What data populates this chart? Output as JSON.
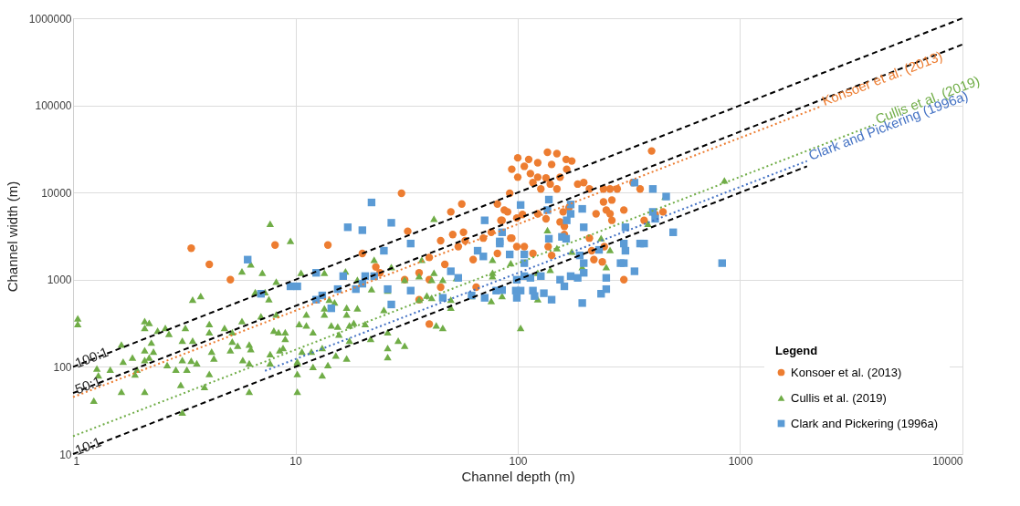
{
  "chart_data": {
    "type": "scatter",
    "xlabel": "Channel depth (m)",
    "ylabel": "Channel width (m)",
    "legend_title": "Legend",
    "legend": "bottom right",
    "grid": true,
    "log": "xy",
    "xlim": [
      1,
      10000
    ],
    "ylim": [
      10,
      1000000
    ],
    "xticks": [
      1,
      10,
      100,
      1000,
      10000
    ],
    "yticks": [
      10,
      100,
      1000,
      10000,
      100000,
      1000000
    ],
    "series": [
      {
        "name": "Konsoer et al. (2013)",
        "color": "#ed7d31",
        "marker": "circle",
        "x": [
          3.4,
          4.1,
          5.1,
          8.1,
          14,
          30,
          20,
          23,
          24,
          32,
          40,
          40,
          31,
          36,
          36,
          40,
          45,
          50,
          56,
          45,
          47,
          51,
          57,
          58,
          54,
          63,
          70,
          81,
          87,
          92,
          93,
          99,
          65,
          85,
          136,
          150,
          100,
          112,
          165,
          175,
          123,
          142,
          94,
          107,
          114,
          100,
          123,
          134,
          155,
          166,
          117,
          140,
          127,
          150,
          186,
          198,
          210,
          243,
          260,
          280,
          330,
          355,
          400,
          90,
          99,
          105,
          123,
          134,
          160,
          170,
          243,
          265,
          250,
          260,
          300,
          265,
          225,
          155,
          162,
          84,
          76,
          94,
          107,
          117,
          137,
          142,
          81,
          162,
          210,
          215,
          245,
          220,
          240,
          300,
          370,
          415,
          450
        ],
        "values": [
          2300,
          1500,
          1000,
          2500,
          2500,
          9800,
          2000,
          1400,
          1200,
          3600,
          1800,
          310,
          1000,
          1200,
          590,
          1000,
          820,
          6000,
          7400,
          2800,
          1500,
          3300,
          3500,
          2800,
          2400,
          1700,
          3000,
          7400,
          6300,
          9800,
          3000,
          2400,
          820,
          4800,
          29000,
          28000,
          25000,
          24000,
          24000,
          23000,
          22000,
          21000,
          18500,
          20000,
          16500,
          15000,
          15000,
          14700,
          15000,
          18500,
          13000,
          12500,
          11000,
          11000,
          12500,
          13000,
          11000,
          11000,
          11000,
          11000,
          13000,
          11000,
          30000,
          6000,
          5100,
          5600,
          5700,
          5000,
          6000,
          6700,
          7800,
          8200,
          6300,
          5700,
          6300,
          4800,
          5700,
          4600,
          4100,
          4800,
          3500,
          3000,
          2400,
          2000,
          2400,
          1900,
          2000,
          3300,
          3000,
          2150,
          2400,
          1700,
          1600,
          1000,
          4800,
          5600,
          6000
        ]
      },
      {
        "name": "Cullis et al. (2019)",
        "color": "#70ad47",
        "marker": "triangle",
        "x": [
          1.05,
          1.05,
          1.28,
          1.3,
          1.24,
          1.47,
          1.65,
          1.68,
          1.65,
          1.85,
          1.94,
          1.9,
          2.1,
          2.1,
          2.2,
          2.1,
          2.1,
          2.1,
          2.25,
          2.4,
          2.3,
          2.2,
          2.6,
          2.7,
          2.65,
          2.9,
          3.05,
          3.1,
          3.2,
          3.1,
          3.1,
          3.25,
          3.4,
          3.45,
          3.6,
          3.45,
          3.75,
          3.9,
          4.1,
          4.1,
          4.2,
          4.3,
          4.1,
          4.8,
          5.2,
          5.2,
          5.1,
          5.5,
          5.75,
          5.8,
          6.2,
          6.3,
          6.2,
          6.2,
          5.75,
          6.3,
          7.1,
          8.2,
          9.5,
          6.6,
          7.3,
          7.6,
          7,
          8.2,
          8,
          8.4,
          9,
          9,
          8.8,
          8.5,
          7.7,
          7.7,
          10.4,
          10.2,
          10.2,
          10.6,
          7.7,
          13.5,
          16.8,
          19,
          22.6,
          27,
          42,
          37,
          42,
          36,
          31,
          22,
          26,
          14.2,
          13.5,
          15,
          17,
          19,
          17,
          14.5,
          12,
          11.2,
          11.2,
          13.5,
          15.5,
          17.5,
          18.3,
          20.6,
          25,
          15.7,
          17.5,
          21.8,
          26,
          29,
          31,
          26,
          26,
          17,
          15.2,
          13.2,
          11.8,
          10.7,
          10.2,
          12,
          14,
          13.2,
          10.2,
          41,
          46,
          53,
          39,
          41,
          36,
          50,
          50,
          43,
          46,
          77,
          93,
          77,
          85,
          76,
          62,
          103,
          136,
          150,
          175,
          237,
          260,
          250,
          195,
          460,
          385,
          77,
          123,
          140,
          123,
          850
        ],
        "values": [
          360,
          310,
          96,
          80,
          41,
          93,
          180,
          115,
          52,
          128,
          93,
          82,
          335,
          280,
          320,
          155,
          120,
          52,
          190,
          260,
          150,
          128,
          280,
          240,
          105,
          93,
          62,
          30,
          280,
          200,
          120,
          93,
          118,
          200,
          110,
          590,
          650,
          59,
          310,
          250,
          150,
          125,
          83,
          280,
          250,
          195,
          155,
          175,
          335,
          120,
          180,
          160,
          110,
          52,
          1250,
          1500,
          1200,
          950,
          2800,
          720,
          720,
          600,
          380,
          400,
          260,
          250,
          250,
          210,
          165,
          155,
          140,
          110,
          310,
          110,
          52,
          1200,
          4400,
          1200,
          1250,
          1000,
          1700,
          1400,
          5000,
          1700,
          1200,
          1100,
          1000,
          780,
          750,
          590,
          470,
          550,
          480,
          470,
          400,
          300,
          250,
          300,
          400,
          400,
          290,
          300,
          320,
          310,
          450,
          235,
          200,
          210,
          250,
          200,
          175,
          165,
          130,
          125,
          135,
          165,
          150,
          150,
          115,
          100,
          105,
          80,
          83,
          1000,
          1000,
          1050,
          660,
          620,
          590,
          590,
          480,
          300,
          280,
          1700,
          1550,
          1200,
          650,
          570,
          650,
          280,
          3700,
          2300,
          2100,
          3000,
          2200,
          1400,
          1400,
          9000,
          4400,
          1100,
          1200,
          1300,
          600,
          13800
        ]
      },
      {
        "name": "Clark and Pickering (1996a)",
        "color": "#5b9bd5",
        "marker": "square",
        "x": [
          6.1,
          7,
          9.5,
          10.2,
          12.4,
          17.2,
          20,
          22,
          27,
          25,
          33,
          16.4,
          20.6,
          22.6,
          20,
          18.7,
          15.5,
          13.2,
          12.4,
          14.5,
          26,
          33,
          27,
          46,
          50,
          54,
          66,
          70,
          71,
          83,
          85,
          92,
          62,
          71,
          80,
          85,
          98,
          103,
          138,
          136,
          173,
          195,
          173,
          166,
          198,
          83,
          138,
          158,
          165,
          305,
          335,
          405,
          465,
          405,
          415,
          232,
          300,
          305,
          355,
          370,
          500,
          107,
          107,
          107,
          99,
          114,
          127,
          103,
          99,
          117,
          119,
          131,
          142,
          155,
          162,
          173,
          186,
          198,
          198,
          190,
          250,
          250,
          237,
          290,
          300,
          335,
          195,
          830
        ],
        "values": [
          1700,
          690,
          840,
          840,
          1200,
          4000,
          3700,
          7700,
          4500,
          2150,
          2600,
          1100,
          1100,
          1100,
          900,
          780,
          780,
          660,
          590,
          470,
          780,
          750,
          520,
          620,
          1250,
          1050,
          2150,
          1850,
          4800,
          2750,
          3500,
          1950,
          660,
          620,
          750,
          760,
          750,
          7200,
          8300,
          6300,
          7300,
          6500,
          5700,
          4800,
          4000,
          2600,
          2950,
          3100,
          2950,
          4000,
          13000,
          11000,
          9000,
          6000,
          5000,
          2200,
          2600,
          2150,
          2600,
          2600,
          3500,
          1950,
          1550,
          1100,
          1000,
          1050,
          1100,
          750,
          620,
          750,
          650,
          700,
          590,
          1000,
          840,
          1100,
          1050,
          1200,
          1550,
          1900,
          1050,
          780,
          690,
          1550,
          1550,
          1250,
          540,
          1550
        ]
      },
      {
        "name": "100:1",
        "type": "line",
        "color": "#000000",
        "line_style": "dashed",
        "x": [
          1,
          10000
        ],
        "values": [
          100,
          1000000
        ]
      },
      {
        "name": "50:1",
        "type": "line",
        "color": "#000000",
        "line_style": "dashed",
        "x": [
          1,
          10000
        ],
        "values": [
          50,
          500000
        ]
      },
      {
        "name": "10:1",
        "type": "line",
        "color": "#000000",
        "line_style": "dashed",
        "x": [
          1,
          2000
        ],
        "values": [
          10,
          20000
        ]
      },
      {
        "name": "Konsoer et al. (2013)",
        "type": "line",
        "color": "#ed7d31",
        "line_style": "dotted",
        "x": [
          1,
          2300
        ],
        "values": [
          45,
          97000
        ]
      },
      {
        "name": "Cullis et al. (2019)",
        "type": "line",
        "color": "#70ad47",
        "line_style": "dotted",
        "x": [
          1,
          4000
        ],
        "values": [
          16,
          60000
        ]
      },
      {
        "name": "Clark and Pickering (1996a)",
        "type": "line",
        "color": "#4472c4",
        "line_style": "dotted",
        "x": [
          7.3,
          2000
        ],
        "values": [
          90,
          23000
        ]
      }
    ]
  }
}
